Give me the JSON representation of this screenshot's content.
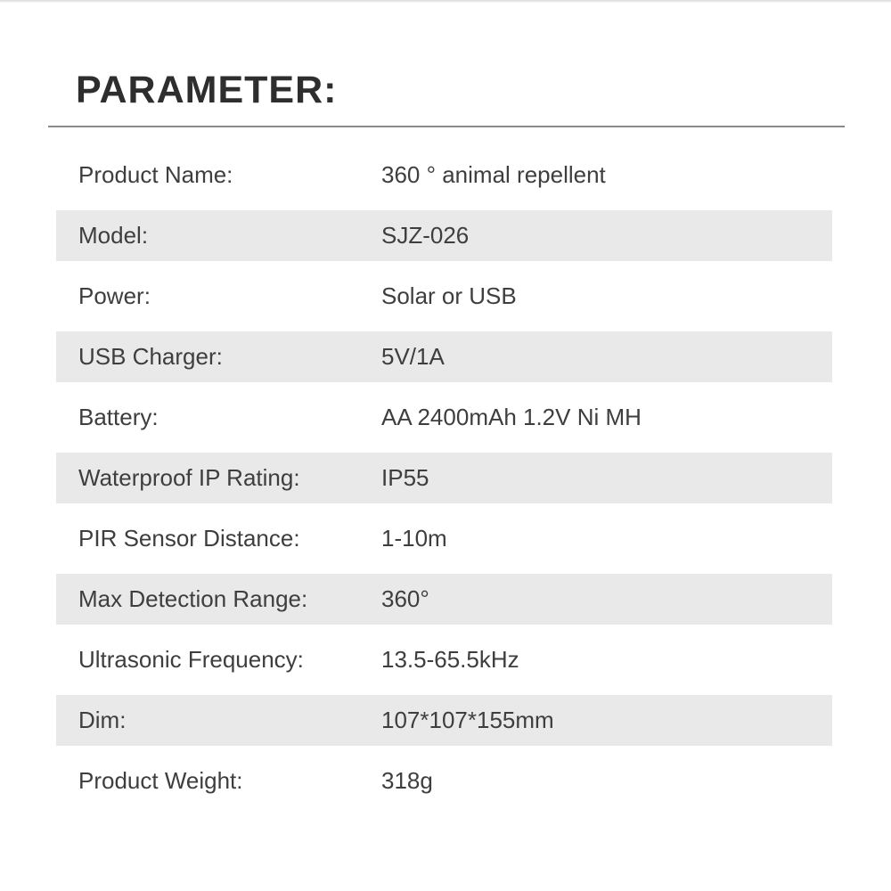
{
  "title": "PARAMETER:",
  "table": {
    "rows": [
      {
        "label": "Product Name:",
        "value": "360 ° animal repellent"
      },
      {
        "label": "Model:",
        "value": "SJZ-026"
      },
      {
        "label": "Power:",
        "value": "Solar or USB"
      },
      {
        "label": "USB Charger:",
        "value": "5V/1A"
      },
      {
        "label": "Battery:",
        "value": "AA 2400mAh 1.2V Ni MH"
      },
      {
        "label": "Waterproof IP Rating:",
        "value": "IP55"
      },
      {
        "label": "PIR Sensor Distance:",
        "value": "1-10m"
      },
      {
        "label": "Max Detection Range:",
        "value": "360°"
      },
      {
        "label": "Ultrasonic Frequency:",
        "value": "13.5-65.5kHz"
      },
      {
        "label": "Dim:",
        "value": "107*107*155mm"
      },
      {
        "label": "Product Weight:",
        "value": "318g"
      }
    ]
  },
  "colors": {
    "title": "#2e2e2e",
    "text": "#3e3e3e",
    "row_alt_bg": "#e9e9e9",
    "divider": "#8a8a8a"
  }
}
